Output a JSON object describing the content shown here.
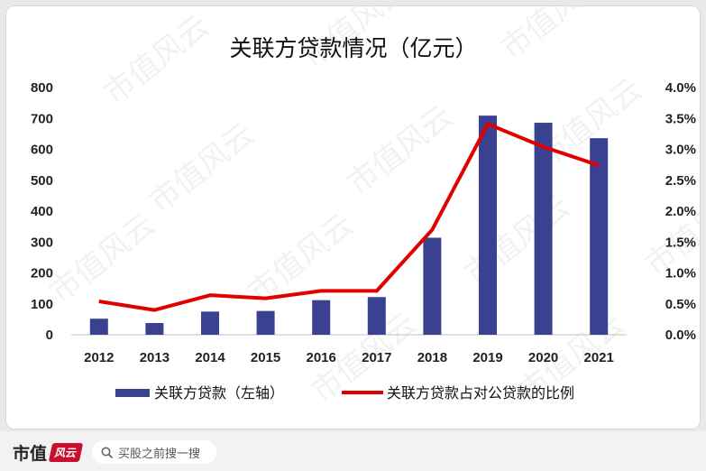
{
  "chart_data": {
    "type": "bar+line",
    "title": "关联方贷款情况（亿元）",
    "categories": [
      "2012",
      "2013",
      "2014",
      "2015",
      "2016",
      "2017",
      "2018",
      "2019",
      "2020",
      "2021"
    ],
    "series": [
      {
        "name": "关联方贷款（左轴）",
        "axis": "left",
        "kind": "bar",
        "values": [
          52,
          38,
          75,
          77,
          112,
          122,
          314,
          709,
          686,
          636
        ]
      },
      {
        "name": "关联方贷款占对公贷款的比例",
        "axis": "right",
        "kind": "line",
        "values": [
          0.54,
          0.4,
          0.64,
          0.59,
          0.71,
          0.71,
          1.7,
          3.41,
          3.04,
          2.74
        ]
      }
    ],
    "left_axis": {
      "ticks": [
        "0",
        "100",
        "200",
        "300",
        "400",
        "500",
        "600",
        "700",
        "800"
      ],
      "ylim": [
        0,
        800
      ]
    },
    "right_axis": {
      "ticks": [
        "0.0%",
        "0.5%",
        "1.0%",
        "1.5%",
        "2.0%",
        "2.5%",
        "3.0%",
        "3.5%",
        "4.0%"
      ],
      "ylim": [
        0,
        4
      ]
    },
    "grid": false,
    "legend_position": "bottom",
    "colors": {
      "bar": "#3a4190",
      "line": "#e10000"
    }
  },
  "watermark_text": "市值风云",
  "footer": {
    "brand": "市值",
    "brand_mark": "风云",
    "search_icon": "search-icon",
    "search_text": "买股之前搜一搜"
  }
}
